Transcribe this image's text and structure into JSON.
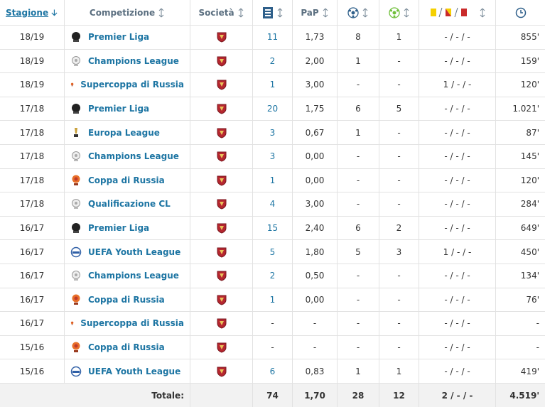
{
  "header": {
    "season": "Stagione",
    "competition": "Competizione",
    "club": "Società",
    "ppg": "PaP"
  },
  "rows": [
    {
      "season": "18/19",
      "competition": "Premier Liga",
      "apps": "11",
      "ppg": "1,73",
      "goals": "8",
      "assists": "1",
      "cards": "- / - / -",
      "minutes": "855'"
    },
    {
      "season": "18/19",
      "competition": "Champions League",
      "apps": "2",
      "ppg": "2,00",
      "goals": "1",
      "assists": "-",
      "cards": "- / - / -",
      "minutes": "159'"
    },
    {
      "season": "18/19",
      "competition": "Supercoppa di Russia",
      "apps": "1",
      "ppg": "3,00",
      "goals": "-",
      "assists": "-",
      "cards": "1 / - / -",
      "minutes": "120'"
    },
    {
      "season": "17/18",
      "competition": "Premier Liga",
      "apps": "20",
      "ppg": "1,75",
      "goals": "6",
      "assists": "5",
      "cards": "- / - / -",
      "minutes": "1.021'"
    },
    {
      "season": "17/18",
      "competition": "Europa League",
      "apps": "3",
      "ppg": "0,67",
      "goals": "1",
      "assists": "-",
      "cards": "- / - / -",
      "minutes": "87'"
    },
    {
      "season": "17/18",
      "competition": "Champions League",
      "apps": "3",
      "ppg": "0,00",
      "goals": "-",
      "assists": "-",
      "cards": "- / - / -",
      "minutes": "145'"
    },
    {
      "season": "17/18",
      "competition": "Coppa di Russia",
      "apps": "1",
      "ppg": "0,00",
      "goals": "-",
      "assists": "-",
      "cards": "- / - / -",
      "minutes": "120'"
    },
    {
      "season": "17/18",
      "competition": "Qualificazione CL",
      "apps": "4",
      "ppg": "3,00",
      "goals": "-",
      "assists": "-",
      "cards": "- / - / -",
      "minutes": "284'"
    },
    {
      "season": "16/17",
      "competition": "Premier Liga",
      "apps": "15",
      "ppg": "2,40",
      "goals": "6",
      "assists": "2",
      "cards": "- / - / -",
      "minutes": "649'"
    },
    {
      "season": "16/17",
      "competition": "UEFA Youth League",
      "apps": "5",
      "ppg": "1,80",
      "goals": "5",
      "assists": "3",
      "cards": "1 / - / -",
      "minutes": "450'"
    },
    {
      "season": "16/17",
      "competition": "Champions League",
      "apps": "2",
      "ppg": "0,50",
      "goals": "-",
      "assists": "-",
      "cards": "- / - / -",
      "minutes": "134'"
    },
    {
      "season": "16/17",
      "competition": "Coppa di Russia",
      "apps": "1",
      "ppg": "0,00",
      "goals": "-",
      "assists": "-",
      "cards": "- / - / -",
      "minutes": "76'"
    },
    {
      "season": "16/17",
      "competition": "Supercoppa di Russia",
      "apps": "-",
      "ppg": "-",
      "goals": "-",
      "assists": "-",
      "cards": "- / - / -",
      "minutes": "-"
    },
    {
      "season": "15/16",
      "competition": "Coppa di Russia",
      "apps": "-",
      "ppg": "-",
      "goals": "-",
      "assists": "-",
      "cards": "- / - / -",
      "minutes": "-"
    },
    {
      "season": "15/16",
      "competition": "UEFA Youth League",
      "apps": "6",
      "ppg": "0,83",
      "goals": "1",
      "assists": "1",
      "cards": "- / - / -",
      "minutes": "419'"
    }
  ],
  "total": {
    "label": "Totale:",
    "apps": "74",
    "ppg": "1,70",
    "goals": "28",
    "assists": "12",
    "cards": "2 / - / -",
    "minutes": "4.519'"
  }
}
